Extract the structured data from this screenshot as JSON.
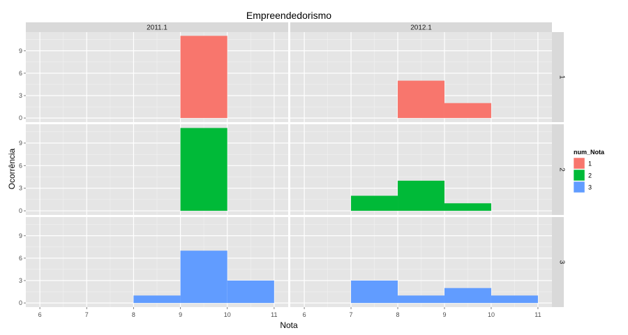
{
  "chart_data": {
    "type": "bar",
    "subtype": "faceted-histogram",
    "title": "Empreendedorismo",
    "xlabel": "Nota",
    "ylabel": "Ocorrência",
    "xlim": [
      5.7,
      11.3
    ],
    "x_ticks": [
      6,
      7,
      8,
      9,
      10,
      11
    ],
    "ylim": [
      -0.55,
      11.5
    ],
    "y_ticks": [
      0,
      3,
      6,
      9
    ],
    "grid": true,
    "legend": {
      "title": "num_Nota",
      "position": "right",
      "entries": [
        {
          "label": "1",
          "color": "#F8766D"
        },
        {
          "label": "2",
          "color": "#00BA38"
        },
        {
          "label": "3",
          "color": "#619CFF"
        }
      ]
    },
    "facet_columns": [
      "2011.1",
      "2012.1"
    ],
    "facet_rows": [
      "1",
      "2",
      "3"
    ],
    "panels": [
      {
        "col": "2011.1",
        "row": "1",
        "bars": [
          {
            "x0": 9,
            "x1": 10,
            "count": 11
          }
        ]
      },
      {
        "col": "2012.1",
        "row": "1",
        "bars": [
          {
            "x0": 8,
            "x1": 9,
            "count": 5
          },
          {
            "x0": 9,
            "x1": 10,
            "count": 2
          }
        ]
      },
      {
        "col": "2011.1",
        "row": "2",
        "bars": [
          {
            "x0": 9,
            "x1": 10,
            "count": 11
          }
        ]
      },
      {
        "col": "2012.1",
        "row": "2",
        "bars": [
          {
            "x0": 7,
            "x1": 8,
            "count": 2
          },
          {
            "x0": 8,
            "x1": 9,
            "count": 4
          },
          {
            "x0": 9,
            "x1": 10,
            "count": 1
          }
        ]
      },
      {
        "col": "2011.1",
        "row": "3",
        "bars": [
          {
            "x0": 8,
            "x1": 9,
            "count": 1
          },
          {
            "x0": 9,
            "x1": 10,
            "count": 7
          },
          {
            "x0": 10,
            "x1": 11,
            "count": 3
          }
        ]
      },
      {
        "col": "2012.1",
        "row": "3",
        "bars": [
          {
            "x0": 7,
            "x1": 8,
            "count": 3
          },
          {
            "x0": 8,
            "x1": 9,
            "count": 1
          },
          {
            "x0": 9,
            "x1": 10,
            "count": 2
          },
          {
            "x0": 10,
            "x1": 11,
            "count": 1
          }
        ]
      }
    ]
  }
}
